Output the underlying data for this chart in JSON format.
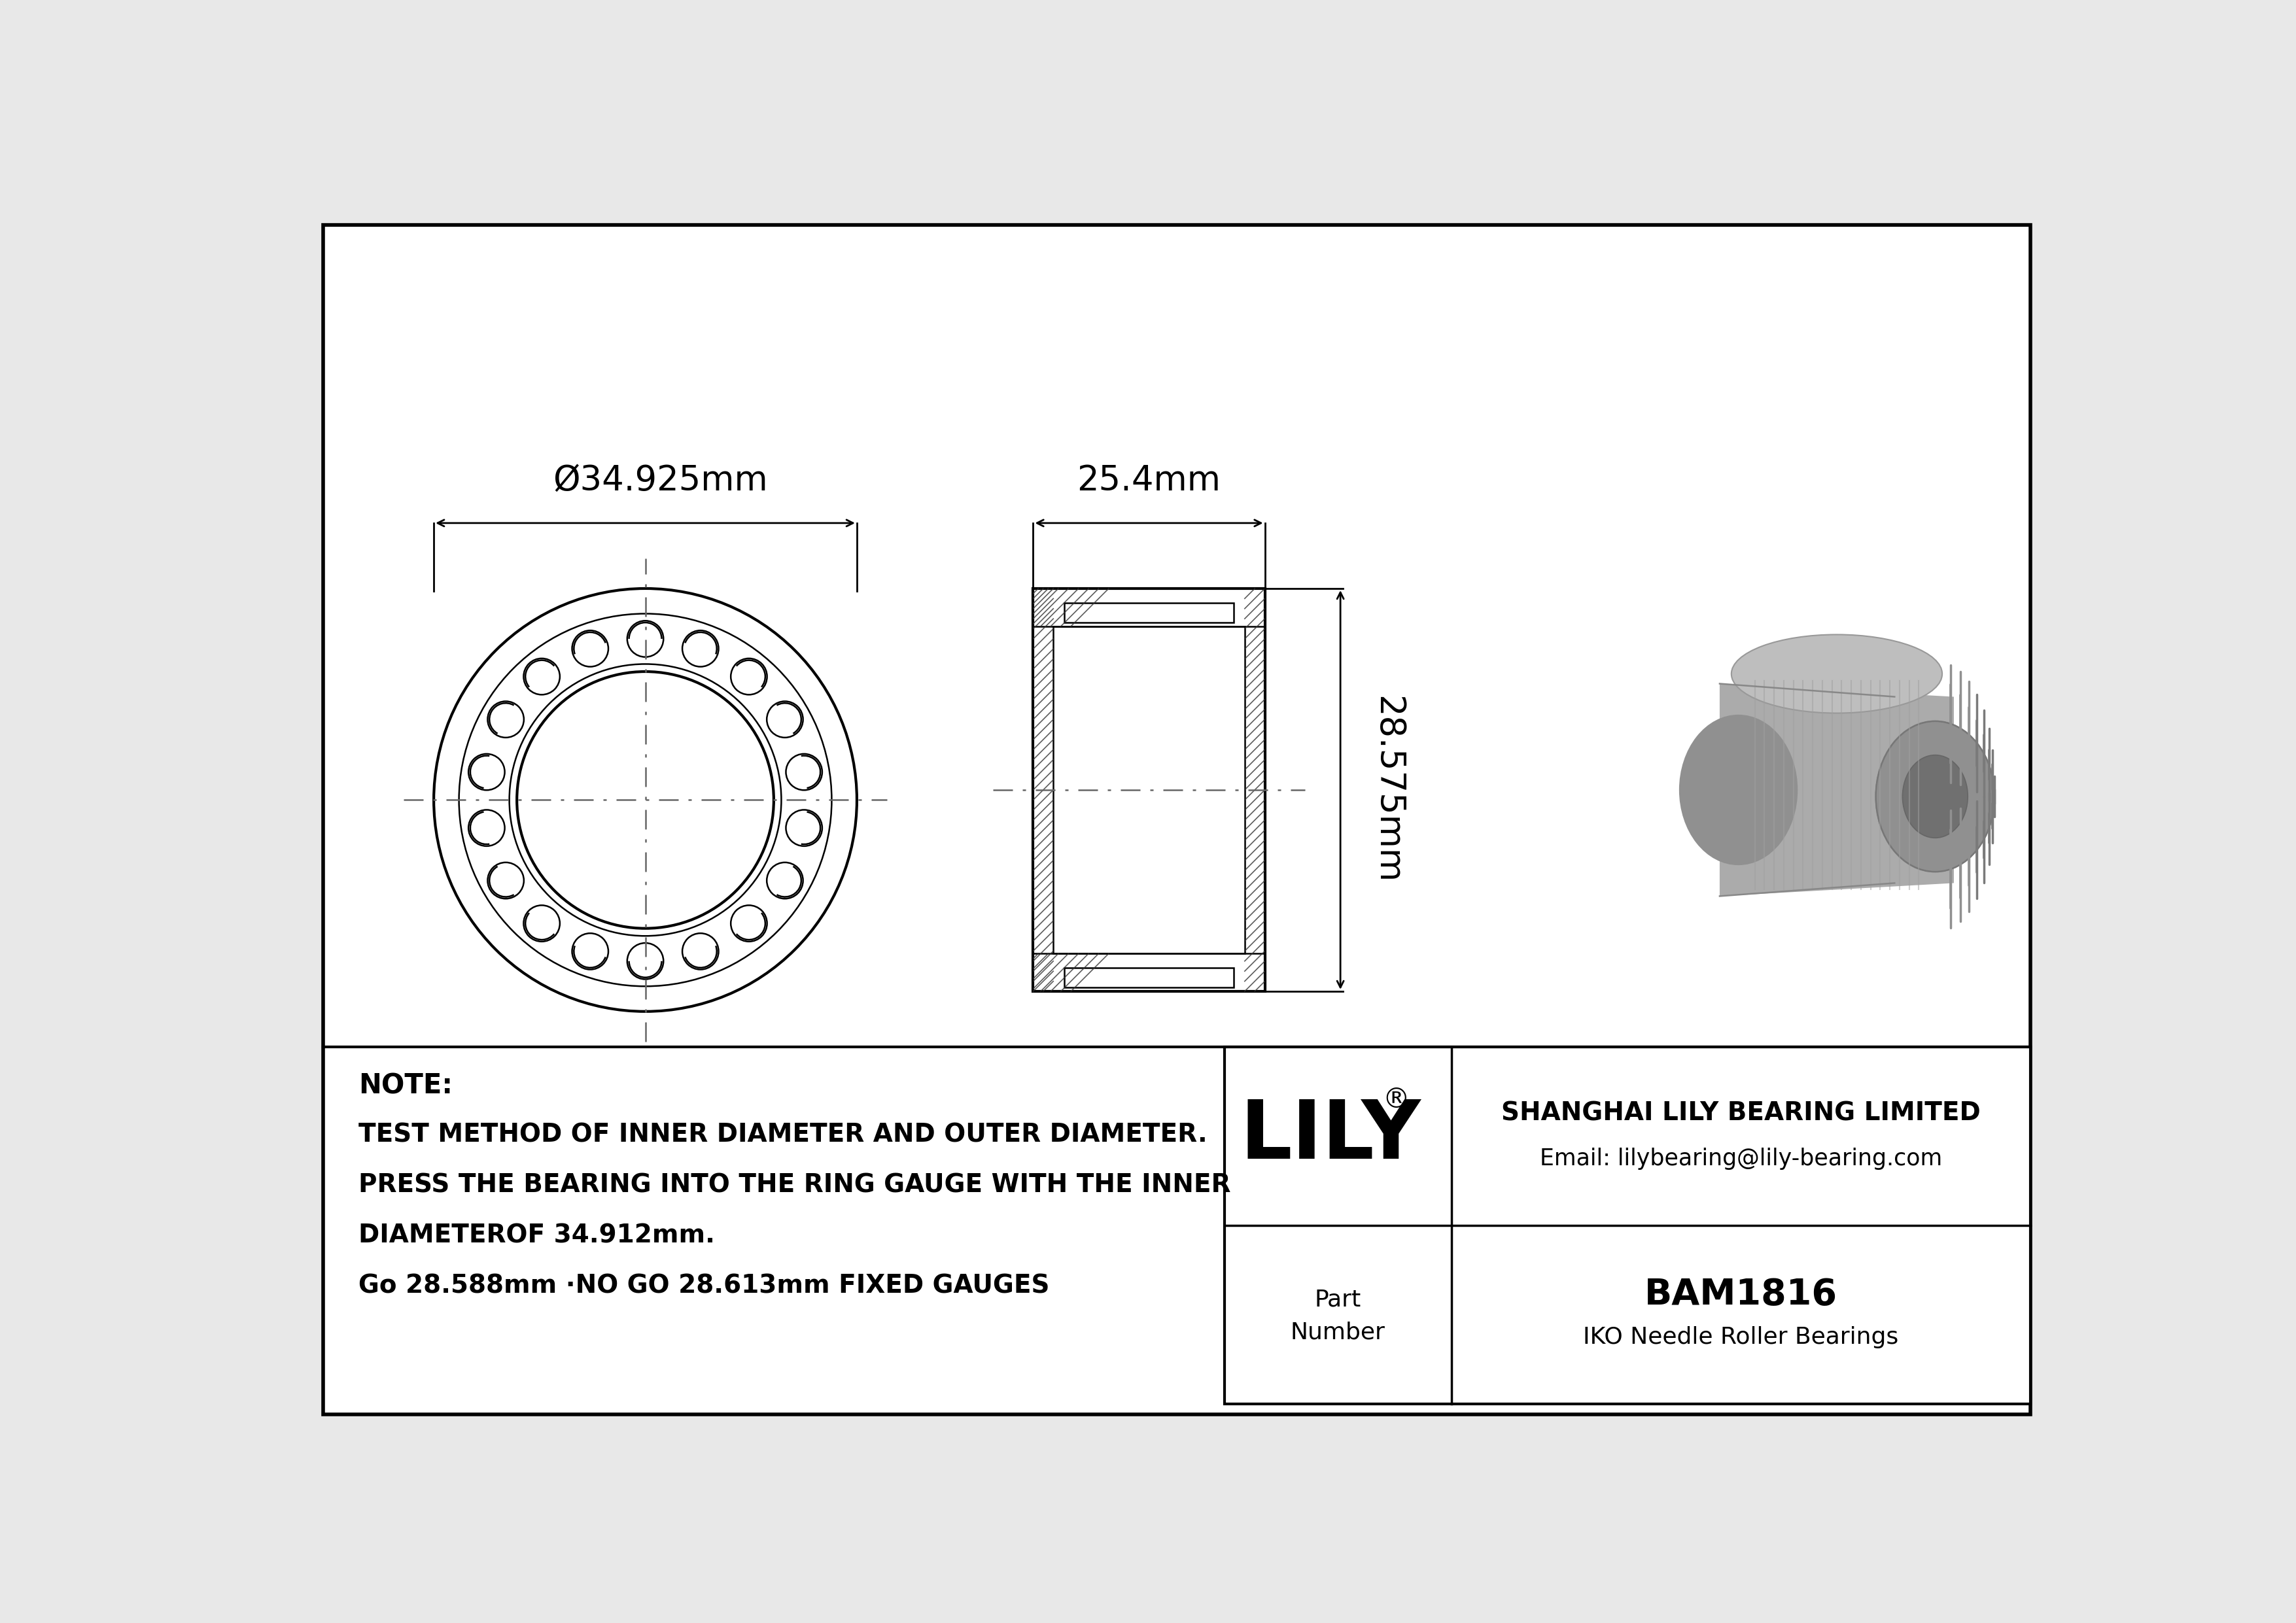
{
  "bg_color": "#e8e8e8",
  "white": "#ffffff",
  "black": "#000000",
  "draw_bg": "#ffffff",
  "line_color": "#000000",
  "gray_3d_body": "#aaaaaa",
  "gray_3d_top": "#c0c0c0",
  "gray_3d_inner": "#989898",
  "gray_3d_dark": "#888888",
  "part_number": "BAM1816",
  "bearing_type": "IKO Needle Roller Bearings",
  "company": "SHANGHAI LILY BEARING LIMITED",
  "email": "Email: lilybearing@lily-bearing.com",
  "note_line1": "NOTE:",
  "note_line2": "TEST METHOD OF INNER DIAMETER AND OUTER DIAMETER.",
  "note_line3": "PRESS THE BEARING INTO THE RING GAUGE WITH THE INNER",
  "note_line4": "DIAMETEROF 34.912mm.",
  "note_line5": "Go 28.588mm ·NO GO 28.613mm FIXED GAUGES",
  "outer_diameter_label": "Ø34.925mm",
  "width_label": "25.4mm",
  "height_label": "28.575mm",
  "lily_text": "LILY",
  "part_label": "Part",
  "number_label": "Number"
}
